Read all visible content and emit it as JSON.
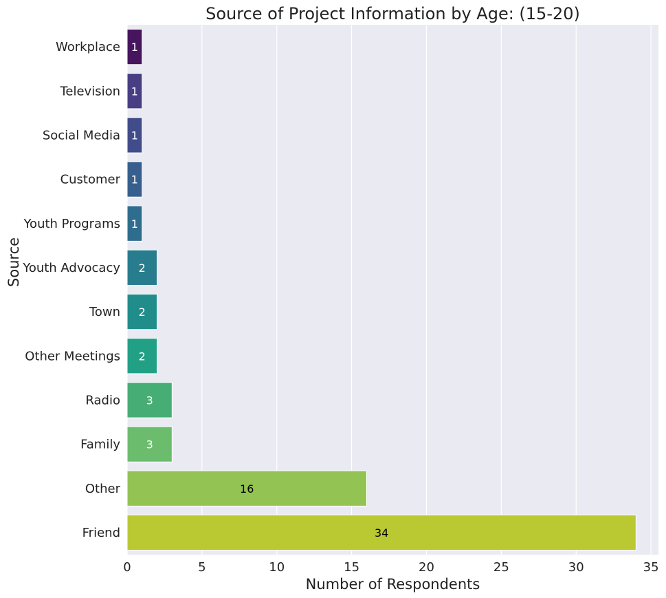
{
  "chart_data": {
    "type": "bar",
    "orientation": "horizontal",
    "title": "Source of Project Information by Age: (15-20)",
    "xlabel": "Number of Respondents",
    "ylabel": "Source",
    "xlim": [
      0,
      35.5
    ],
    "xticks": [
      0,
      5,
      10,
      15,
      20,
      25,
      30,
      35
    ],
    "grid": "vertical",
    "palette": "viridis",
    "background": "#eaeaf2",
    "categories": [
      "Workplace",
      "Television",
      "Social Media",
      "Customer",
      "Youth Programs",
      "Youth Advocacy",
      "Town",
      "Other Meetings",
      "Radio",
      "Family",
      "Other",
      "Friend"
    ],
    "values": [
      1,
      1,
      1,
      1,
      1,
      2,
      2,
      2,
      3,
      3,
      16,
      34
    ],
    "colors": [
      "#46155e",
      "#473e84",
      "#414d8a",
      "#365f8d",
      "#2f6d8e",
      "#277d8e",
      "#208d8b",
      "#21a085",
      "#46ae74",
      "#6bbc6d",
      "#93c453",
      "#bac932"
    ],
    "label_colors": [
      "#ffffff",
      "#ffffff",
      "#ffffff",
      "#ffffff",
      "#ffffff",
      "#ffffff",
      "#ffffff",
      "#ffffff",
      "#ffffff",
      "#ffffff",
      "#000000",
      "#000000"
    ]
  }
}
